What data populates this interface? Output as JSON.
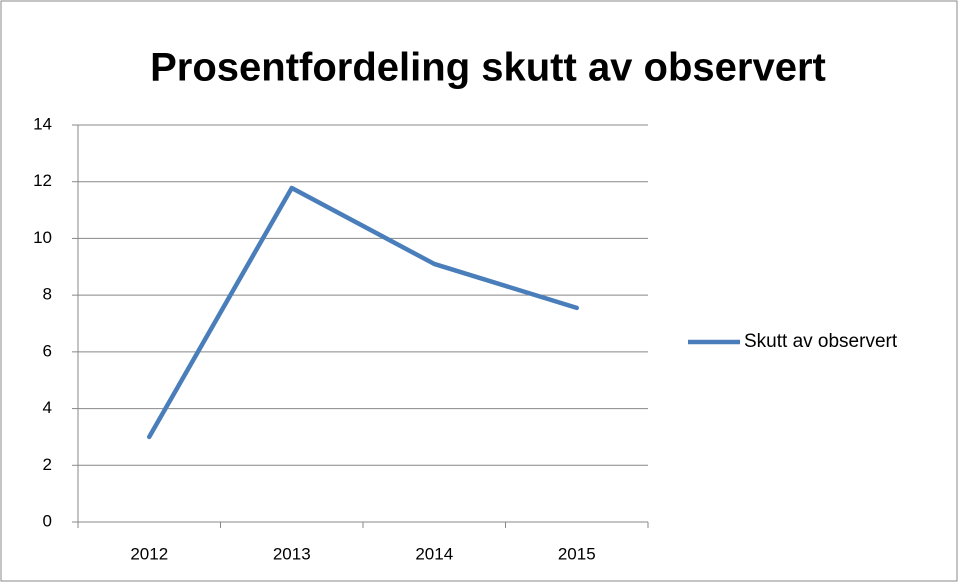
{
  "chart_data": {
    "type": "line",
    "title": "Prosentfordeling skutt av observert",
    "categories": [
      "2012",
      "2013",
      "2014",
      "2015"
    ],
    "series": [
      {
        "name": "Skutt av observert",
        "color": "#4a7ebb",
        "values": [
          3.0,
          11.78,
          9.1,
          7.55
        ]
      }
    ],
    "ylim": [
      0,
      14
    ],
    "yticks": [
      0,
      2,
      4,
      6,
      8,
      10,
      12,
      14
    ],
    "grid": true,
    "legend": "right"
  }
}
